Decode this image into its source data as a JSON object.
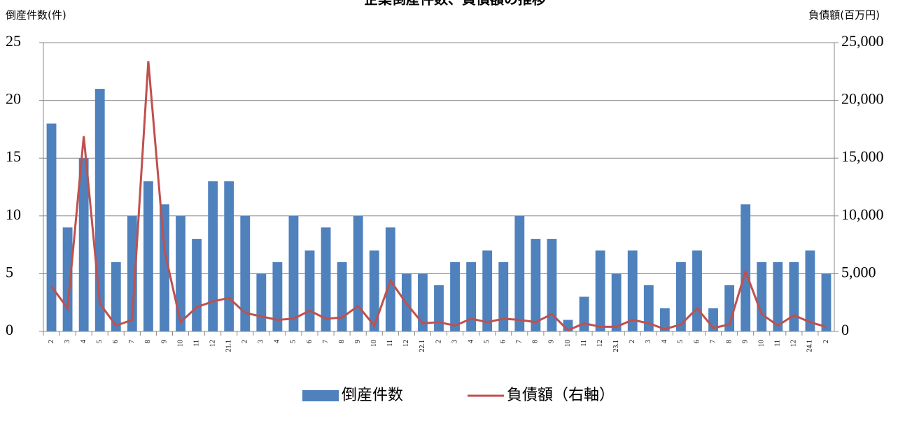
{
  "chart_data": {
    "type": "bar_line",
    "title": "企業倒産件数、負債額の推移",
    "y_label": "倒産件数(件)",
    "y2_label": "負債額(百万円)",
    "categories": [
      "2",
      "3",
      "4",
      "5",
      "6",
      "7",
      "8",
      "9",
      "10",
      "11",
      "12",
      "21.1",
      "2",
      "3",
      "4",
      "5",
      "6",
      "7",
      "8",
      "9",
      "10",
      "11",
      "12",
      "22.1",
      "2",
      "3",
      "4",
      "5",
      "6",
      "7",
      "8",
      "9",
      "10",
      "11",
      "12",
      "23.1",
      "2",
      "3",
      "4",
      "5",
      "6",
      "7",
      "8",
      "9",
      "10",
      "11",
      "12",
      "24.1",
      "2"
    ],
    "series": [
      {
        "name": "倒産件数",
        "color": "#4f81bd",
        "kind": "bar",
        "values": [
          18,
          9,
          15,
          21,
          6,
          10,
          13,
          11,
          10,
          8,
          13,
          13,
          10,
          5,
          6,
          10,
          7,
          9,
          6,
          10,
          7,
          9,
          5,
          5,
          4,
          6,
          6,
          7,
          6,
          10,
          8,
          8,
          1,
          3,
          7,
          5,
          7,
          4,
          2,
          6,
          7,
          2,
          4,
          11,
          6,
          6,
          6,
          7,
          5
        ]
      },
      {
        "name": "負債額（右軸）",
        "color": "#c0504d",
        "kind": "line",
        "axis": "y2",
        "values": [
          3900,
          2000,
          16900,
          2400,
          500,
          1000,
          23400,
          7000,
          800,
          2100,
          2600,
          2900,
          1600,
          1300,
          1000,
          1100,
          1800,
          1100,
          1200,
          2200,
          500,
          4400,
          2400,
          700,
          800,
          500,
          1100,
          800,
          1100,
          1000,
          800,
          1500,
          100,
          700,
          400,
          400,
          1000,
          700,
          200,
          600,
          2000,
          300,
          600,
          5200,
          1500,
          500,
          1400,
          800,
          400
        ]
      }
    ],
    "ylim": [
      0,
      25
    ],
    "yticks": [
      0,
      5,
      10,
      15,
      20,
      25
    ],
    "y2lim": [
      0,
      25000
    ],
    "y2ticks": [
      0,
      {
        "value": 5000,
        "label": "5,000"
      },
      {
        "value": 10000,
        "label": "10,000"
      },
      {
        "value": 15000,
        "label": "15,000"
      },
      {
        "value": 20000,
        "label": "20,000"
      },
      {
        "value": 25000,
        "label": "25,000"
      }
    ],
    "grid": true,
    "legend": "bottom"
  }
}
